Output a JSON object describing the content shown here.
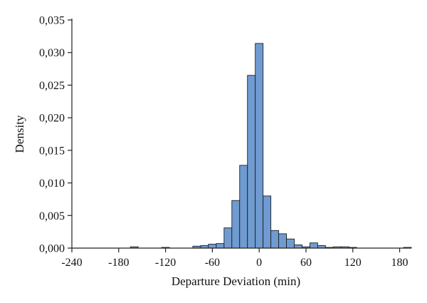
{
  "chart_data": {
    "type": "bar",
    "subtype": "histogram",
    "xlabel": "Departure Deviation (min)",
    "ylabel": "Density",
    "xlim": [
      -240,
      195
    ],
    "ylim": [
      0,
      0.035
    ],
    "bin_width": 10,
    "x_ticks": [
      -240,
      -180,
      -120,
      -60,
      0,
      60,
      120,
      180
    ],
    "x_tick_labels": [
      "-240",
      "-180",
      "-120",
      "-60",
      "0",
      "60",
      "120",
      "180"
    ],
    "y_ticks": [
      0,
      0.005,
      0.01,
      0.015,
      0.02,
      0.025,
      0.03,
      0.035
    ],
    "y_tick_labels": [
      "0,000",
      "0,005",
      "0,010",
      "0,015",
      "0,020",
      "0,025",
      "0,030",
      "0,035"
    ],
    "grid": false,
    "legend": "none",
    "bar_color": "#6f9bd1",
    "bins": [
      {
        "x0": -165,
        "x1": -155,
        "density": 0.0002
      },
      {
        "x0": -125,
        "x1": -115,
        "density": 0.0001
      },
      {
        "x0": -85,
        "x1": -75,
        "density": 0.0003
      },
      {
        "x0": -75,
        "x1": -65,
        "density": 0.0004
      },
      {
        "x0": -65,
        "x1": -55,
        "density": 0.0006
      },
      {
        "x0": -55,
        "x1": -45,
        "density": 0.0007
      },
      {
        "x0": -45,
        "x1": -35,
        "density": 0.0031
      },
      {
        "x0": -35,
        "x1": -25,
        "density": 0.0073
      },
      {
        "x0": -25,
        "x1": -15,
        "density": 0.0127
      },
      {
        "x0": -15,
        "x1": -5,
        "density": 0.0265
      },
      {
        "x0": -5,
        "x1": 5,
        "density": 0.0314
      },
      {
        "x0": 5,
        "x1": 15,
        "density": 0.008
      },
      {
        "x0": 15,
        "x1": 25,
        "density": 0.0027
      },
      {
        "x0": 25,
        "x1": 35,
        "density": 0.0022
      },
      {
        "x0": 35,
        "x1": 45,
        "density": 0.0014
      },
      {
        "x0": 45,
        "x1": 55,
        "density": 0.0005
      },
      {
        "x0": 55,
        "x1": 65,
        "density": 0.0002
      },
      {
        "x0": 65,
        "x1": 75,
        "density": 0.0008
      },
      {
        "x0": 75,
        "x1": 85,
        "density": 0.0004
      },
      {
        "x0": 85,
        "x1": 95,
        "density": 0.0001
      },
      {
        "x0": 95,
        "x1": 105,
        "density": 0.0002
      },
      {
        "x0": 105,
        "x1": 115,
        "density": 0.0002
      },
      {
        "x0": 115,
        "x1": 125,
        "density": 0.0001
      },
      {
        "x0": 185,
        "x1": 195,
        "density": 0.0001
      }
    ]
  }
}
